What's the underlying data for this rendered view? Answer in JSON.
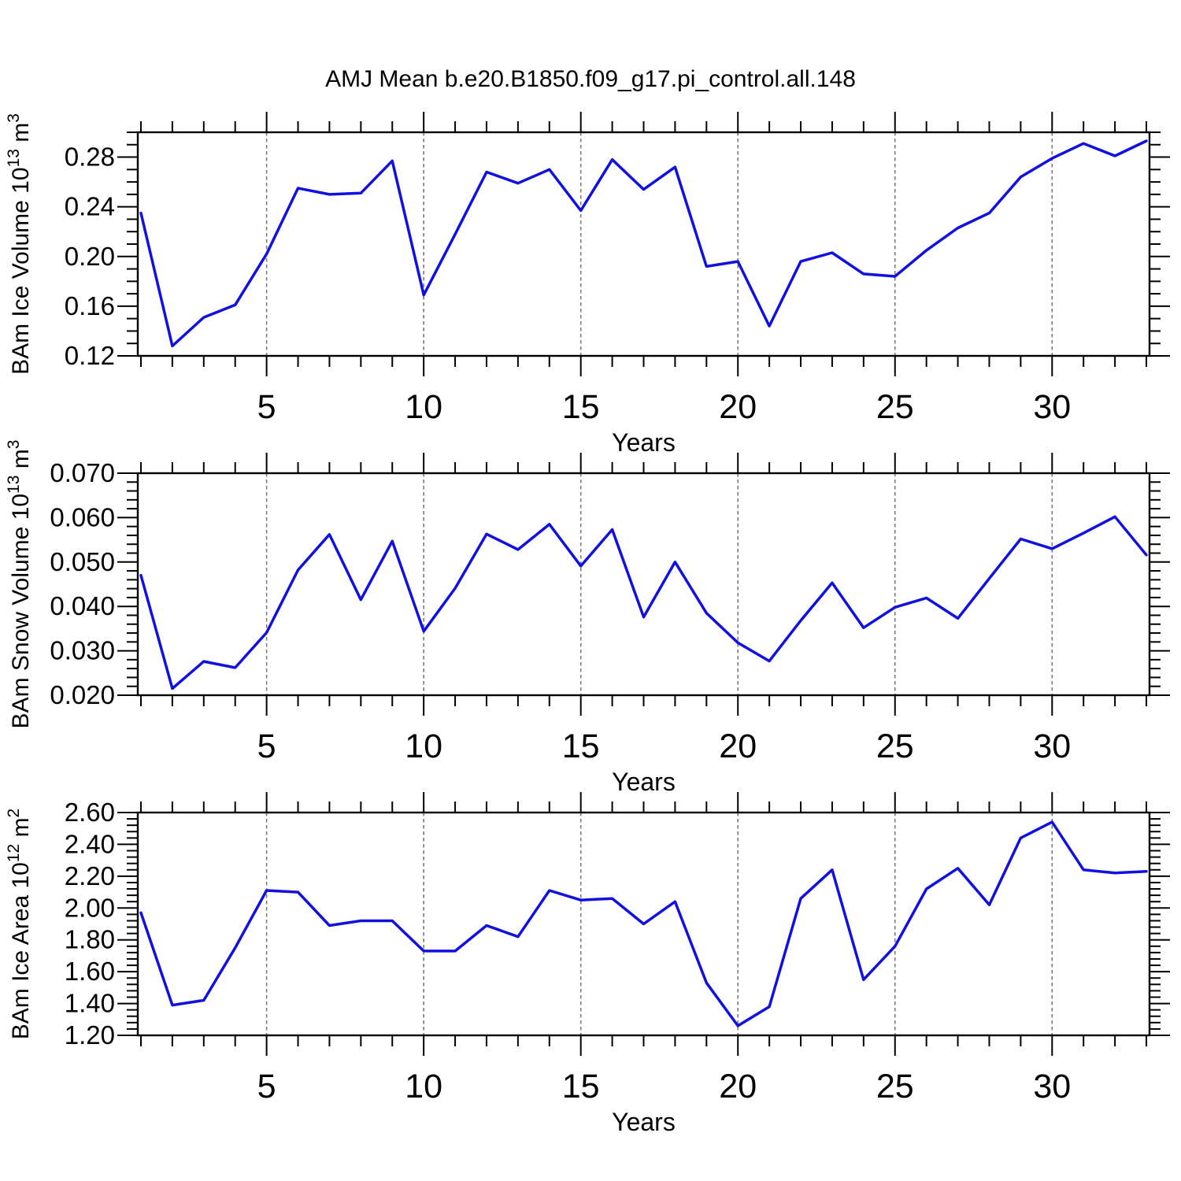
{
  "title": "AMJ Mean b.e20.B1850.f09_g17.pi_control.all.148",
  "colors": {
    "line": "#1010e0",
    "grid": "#7a7a7a",
    "axis": "#000000",
    "background": "#ffffff",
    "text": "#000000"
  },
  "chart_data": [
    {
      "type": "line",
      "name": "ice-volume",
      "xlabel": "Years",
      "ylabel": "BAm Ice Volume 10^13^ m^3^",
      "x": [
        1,
        2,
        3,
        4,
        5,
        6,
        7,
        8,
        9,
        10,
        11,
        12,
        13,
        14,
        15,
        16,
        17,
        18,
        19,
        20,
        21,
        22,
        23,
        24,
        25,
        26,
        27,
        28,
        29,
        30,
        31,
        32,
        33
      ],
      "values": [
        0.235,
        0.128,
        0.151,
        0.161,
        0.202,
        0.255,
        0.25,
        0.251,
        0.277,
        0.169,
        0.218,
        0.268,
        0.259,
        0.27,
        0.237,
        0.278,
        0.254,
        0.272,
        0.192,
        0.196,
        0.144,
        0.196,
        0.203,
        0.186,
        0.184,
        0.205,
        0.223,
        0.235,
        0.264,
        0.279,
        0.291,
        0.281,
        0.293
      ],
      "xlim": [
        0.9,
        33.1
      ],
      "ylim": [
        0.12,
        0.3
      ],
      "xticks": [
        5,
        10,
        15,
        20,
        25,
        30
      ],
      "xtick_labels": [
        "5",
        "10",
        "15",
        "20",
        "25",
        "30"
      ],
      "ytick_values": [
        0.12,
        0.16,
        0.2,
        0.24,
        0.28
      ],
      "ytick_labels": [
        "0.12",
        "0.16",
        "0.20",
        "0.24",
        "0.28"
      ],
      "x_minor_step": 1,
      "y_minor_step": 0.01,
      "grid": "vertical-dashed",
      "legend": "none",
      "line_color": "#1010e0"
    },
    {
      "type": "line",
      "name": "snow-volume",
      "xlabel": "Years",
      "ylabel": "BAm Snow Volume 10^13^ m^3^",
      "x": [
        1,
        2,
        3,
        4,
        5,
        6,
        7,
        8,
        9,
        10,
        11,
        12,
        13,
        14,
        15,
        16,
        17,
        18,
        19,
        20,
        21,
        22,
        23,
        24,
        25,
        26,
        27,
        28,
        29,
        30,
        31,
        32,
        33
      ],
      "values": [
        0.047,
        0.0215,
        0.0276,
        0.0262,
        0.0341,
        0.0482,
        0.0562,
        0.0415,
        0.0547,
        0.0344,
        0.0441,
        0.0563,
        0.0528,
        0.0585,
        0.0491,
        0.0573,
        0.0376,
        0.05,
        0.0385,
        0.0318,
        0.0277,
        0.0368,
        0.0453,
        0.0352,
        0.0398,
        0.0419,
        0.0373,
        0.0463,
        0.0552,
        0.053,
        0.0565,
        0.0602,
        0.0516
      ],
      "xlim": [
        0.9,
        33.1
      ],
      "ylim": [
        0.02,
        0.07
      ],
      "xticks": [
        5,
        10,
        15,
        20,
        25,
        30
      ],
      "xtick_labels": [
        "5",
        "10",
        "15",
        "20",
        "25",
        "30"
      ],
      "ytick_values": [
        0.02,
        0.03,
        0.04,
        0.05,
        0.06,
        0.07
      ],
      "ytick_labels": [
        "0.020",
        "0.030",
        "0.040",
        "0.050",
        "0.060",
        "0.070"
      ],
      "x_minor_step": 1,
      "y_minor_step": 0.002,
      "grid": "vertical-dashed",
      "legend": "none",
      "line_color": "#1010e0"
    },
    {
      "type": "line",
      "name": "ice-area",
      "xlabel": "Years",
      "ylabel": "BAm Ice Area 10^12^ m^2^",
      "x": [
        1,
        2,
        3,
        4,
        5,
        6,
        7,
        8,
        9,
        10,
        11,
        12,
        13,
        14,
        15,
        16,
        17,
        18,
        19,
        20,
        21,
        22,
        23,
        24,
        25,
        26,
        27,
        28,
        29,
        30,
        31,
        32,
        33
      ],
      "values": [
        1.97,
        1.39,
        1.42,
        1.75,
        2.11,
        2.1,
        1.89,
        1.92,
        1.92,
        1.73,
        1.73,
        1.89,
        1.82,
        2.11,
        2.05,
        2.06,
        1.9,
        2.04,
        1.53,
        1.26,
        1.38,
        2.06,
        2.24,
        1.55,
        1.76,
        2.12,
        2.25,
        2.02,
        2.44,
        2.54,
        2.24,
        2.22,
        2.23
      ],
      "xlim": [
        0.9,
        33.1
      ],
      "ylim": [
        1.2,
        2.6
      ],
      "xticks": [
        5,
        10,
        15,
        20,
        25,
        30
      ],
      "xtick_labels": [
        "5",
        "10",
        "15",
        "20",
        "25",
        "30"
      ],
      "ytick_values": [
        1.2,
        1.4,
        1.6,
        1.8,
        2.0,
        2.2,
        2.4,
        2.6
      ],
      "ytick_labels": [
        "1.20",
        "1.40",
        "1.60",
        "1.80",
        "2.00",
        "2.20",
        "2.40",
        "2.60"
      ],
      "x_minor_step": 1,
      "y_minor_step": 0.04,
      "grid": "vertical-dashed",
      "legend": "none",
      "line_color": "#1010e0"
    }
  ]
}
